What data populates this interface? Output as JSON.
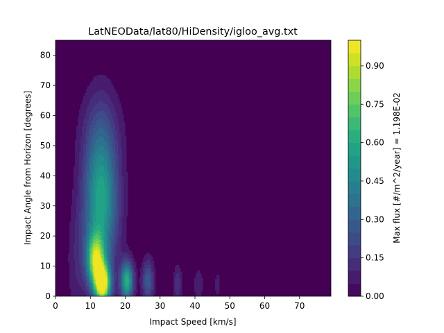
{
  "chart_data": {
    "type": "heatmap",
    "subtype": "filled-contour",
    "title": "LatNEOData/lat80/HiDensity/igloo_avg.txt",
    "xlabel": "Impact Speed [km/s]",
    "ylabel": "Impact Angle from Horizon [degrees]",
    "xlim": [
      0,
      79
    ],
    "ylim": [
      0,
      85
    ],
    "xticks": [
      0,
      10,
      20,
      30,
      40,
      50,
      60,
      70
    ],
    "yticks": [
      0,
      10,
      20,
      30,
      40,
      50,
      60,
      70,
      80
    ],
    "colorbar": {
      "label": "Max flux [#/m^2/year] = 1.198E-02",
      "range": [
        0,
        1
      ],
      "levels": 20,
      "ticks": [
        "0.00",
        "0.15",
        "0.30",
        "0.45",
        "0.60",
        "0.75",
        "0.90"
      ],
      "tick_values": [
        0,
        0.15,
        0.3,
        0.45,
        0.6,
        0.75,
        0.9
      ]
    },
    "colormap": "viridis",
    "background_color": "#440154",
    "grid": false,
    "data": {
      "peaks": [
        {
          "speed": 13.5,
          "angle": 4,
          "value": 1.0
        },
        {
          "speed": 11.5,
          "angle": 12,
          "value": 0.72
        },
        {
          "speed": 20.5,
          "angle": 5,
          "value": 0.62
        },
        {
          "speed": 13,
          "angle": 30,
          "value": 0.45
        },
        {
          "speed": 26.5,
          "angle": 5,
          "value": 0.28
        },
        {
          "speed": 35,
          "angle": 4,
          "value": 0.14
        },
        {
          "speed": 41,
          "angle": 4,
          "value": 0.08
        },
        {
          "speed": 46.5,
          "angle": 4,
          "value": 0.07
        }
      ]
    }
  }
}
